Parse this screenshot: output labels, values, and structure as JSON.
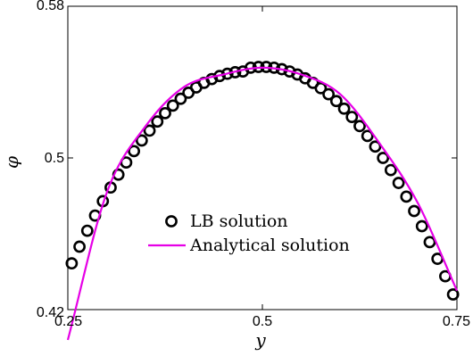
{
  "chart_data": {
    "type": "line",
    "title": "",
    "xlabel": "y",
    "ylabel": "φ",
    "xlim": [
      0.25,
      0.75
    ],
    "ylim": [
      0.42,
      0.58
    ],
    "xticks": [
      0.25,
      0.5,
      0.75
    ],
    "xtick_labels": [
      "0.25",
      "0.5",
      "0.75"
    ],
    "yticks": [
      0.42,
      0.5,
      0.58
    ],
    "ytick_labels": [
      "0.42",
      "0.5",
      "0.58"
    ],
    "grid": false,
    "legend_position": "lower-center",
    "series": [
      {
        "name": "LB solution",
        "style": "markers",
        "marker": "circle",
        "color": "#000000",
        "x": [
          0.255,
          0.265,
          0.275,
          0.285,
          0.295,
          0.305,
          0.315,
          0.325,
          0.335,
          0.345,
          0.355,
          0.365,
          0.375,
          0.385,
          0.395,
          0.405,
          0.415,
          0.425,
          0.435,
          0.445,
          0.455,
          0.465,
          0.475,
          0.485,
          0.495,
          0.505,
          0.515,
          0.525,
          0.535,
          0.545,
          0.555,
          0.565,
          0.575,
          0.585,
          0.595,
          0.605,
          0.615,
          0.625,
          0.635,
          0.645,
          0.655,
          0.665,
          0.675,
          0.685,
          0.695,
          0.705,
          0.715,
          0.725,
          0.735,
          0.745
        ],
        "y": [
          0.4444,
          0.4532,
          0.4616,
          0.4696,
          0.4772,
          0.4844,
          0.4912,
          0.4976,
          0.5036,
          0.5092,
          0.5144,
          0.5192,
          0.5236,
          0.5276,
          0.5312,
          0.5344,
          0.5372,
          0.5396,
          0.5416,
          0.5432,
          0.5444,
          0.5452,
          0.5456,
          0.5476,
          0.548,
          0.548,
          0.5476,
          0.5468,
          0.5456,
          0.544,
          0.542,
          0.5396,
          0.5368,
          0.5336,
          0.53,
          0.526,
          0.5216,
          0.5168,
          0.5116,
          0.506,
          0.5,
          0.4936,
          0.4868,
          0.4796,
          0.472,
          0.464,
          0.4556,
          0.4468,
          0.4376,
          0.428
        ]
      },
      {
        "name": "Analytical solution",
        "style": "line",
        "color": "#e600e6",
        "x": [
          0.25,
          0.3,
          0.35,
          0.4,
          0.45,
          0.5,
          0.55,
          0.6,
          0.65,
          0.7,
          0.75
        ],
        "y": [
          0.404,
          0.4816,
          0.5168,
          0.5376,
          0.544,
          0.5476,
          0.544,
          0.5336,
          0.508,
          0.476,
          0.43
        ]
      }
    ]
  }
}
